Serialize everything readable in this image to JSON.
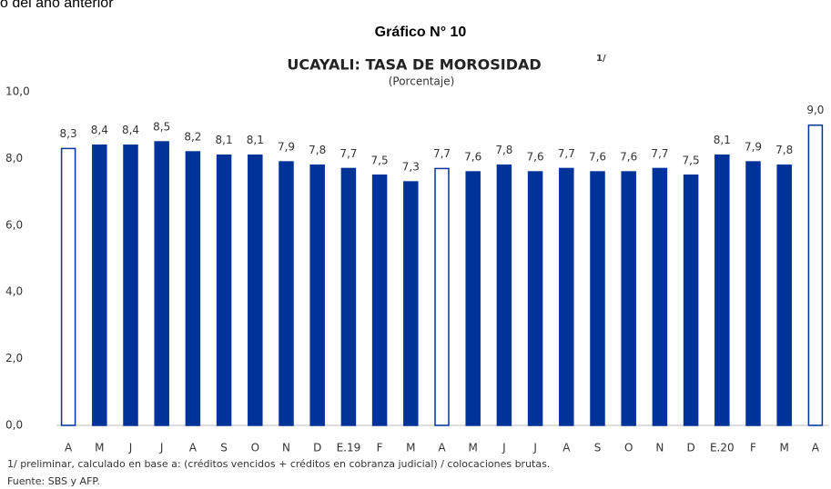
{
  "header_text": "o del año anterior",
  "chart_data": {
    "type": "bar",
    "heading": "Gráfico N° 10",
    "title": "UCAYALI: TASA DE MOROSIDAD",
    "title_note": "1/",
    "subtitle": "(Porcentaje)",
    "categories": [
      "A",
      "M",
      "J",
      "J",
      "A",
      "S",
      "O",
      "N",
      "D",
      "E.19",
      "F",
      "M",
      "A",
      "M",
      "J",
      "J",
      "A",
      "S",
      "O",
      "N",
      "D",
      "E.20",
      "F",
      "M",
      "A"
    ],
    "values": [
      8.3,
      8.4,
      8.4,
      8.5,
      8.2,
      8.1,
      8.1,
      7.9,
      7.8,
      7.7,
      7.5,
      7.3,
      7.7,
      7.6,
      7.8,
      7.6,
      7.7,
      7.6,
      7.6,
      7.7,
      7.5,
      8.1,
      7.9,
      7.8,
      9.0
    ],
    "value_labels": [
      "8,3",
      "8,4",
      "8,4",
      "8,5",
      "8,2",
      "8,1",
      "8,1",
      "7,9",
      "7,8",
      "7,7",
      "7,5",
      "7,3",
      "7,7",
      "7,6",
      "7,8",
      "7,6",
      "7,7",
      "7,6",
      "7,6",
      "7,7",
      "7,5",
      "8,1",
      "7,9",
      "7,8",
      "9,0"
    ],
    "color": "#003399",
    "bar_fills": [
      "#ffffff",
      "#003399",
      "#003399",
      "#003399",
      "#003399",
      "#003399",
      "#003399",
      "#003399",
      "#003399",
      "#003399",
      "#003399",
      "#003399",
      "#ffffff",
      "#003399",
      "#003399",
      "#003399",
      "#003399",
      "#003399",
      "#003399",
      "#003399",
      "#003399",
      "#003399",
      "#003399",
      "#003399",
      "#ffffff"
    ],
    "ylim": [
      0,
      10
    ],
    "yticks": [
      {
        "value": 0,
        "label": "0,0"
      },
      {
        "value": 2,
        "label": "2,0"
      },
      {
        "value": 4,
        "label": "4,0"
      },
      {
        "value": 6,
        "label": "6,0"
      },
      {
        "value": 8,
        "label": "8,0"
      },
      {
        "value": 10,
        "label": "10,0"
      }
    ],
    "grid": false,
    "note": "1/ preliminar, calculado en base a: (créditos vencidos + créditos en cobranza judicial) / colocaciones brutas.",
    "source": "Fuente: SBS y AFP."
  }
}
